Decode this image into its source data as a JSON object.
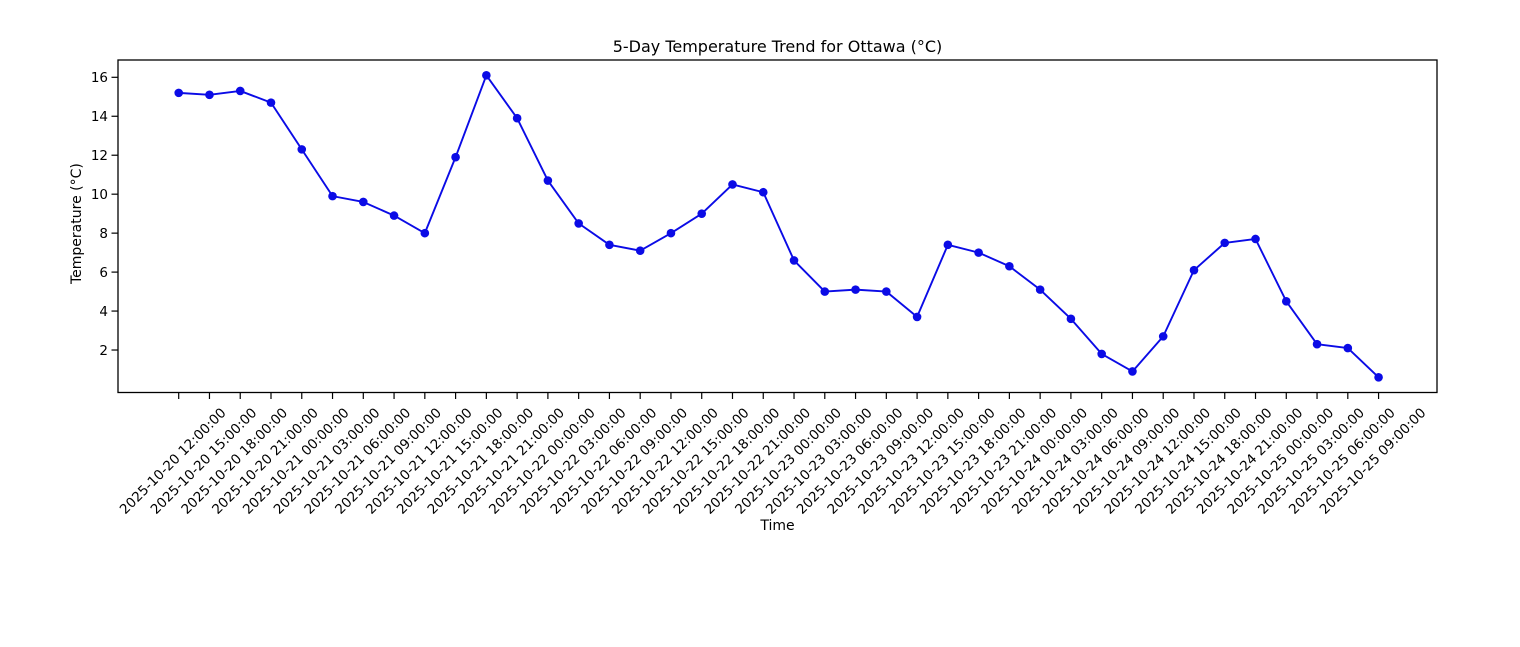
{
  "figure": {
    "title": "5-Day Temperature Trend for Ottawa (°C)",
    "xlabel": "Time",
    "ylabel": "Temperature (°C)"
  },
  "chart_data": {
    "type": "line",
    "title": "5-Day Temperature Trend for Ottawa (°C)",
    "xlabel": "Time",
    "ylabel": "Temperature (°C)",
    "line_color": "#0b0be6",
    "marker": "circle",
    "grid": false,
    "legend": null,
    "yticks": [
      2,
      4,
      6,
      8,
      10,
      12,
      14,
      16
    ],
    "ylim": [
      -0.2,
      16.9
    ],
    "x": [
      "2025-10-20 12:00:00",
      "2025-10-20 15:00:00",
      "2025-10-20 18:00:00",
      "2025-10-20 21:00:00",
      "2025-10-21 00:00:00",
      "2025-10-21 03:00:00",
      "2025-10-21 06:00:00",
      "2025-10-21 09:00:00",
      "2025-10-21 12:00:00",
      "2025-10-21 15:00:00",
      "2025-10-21 18:00:00",
      "2025-10-21 21:00:00",
      "2025-10-22 00:00:00",
      "2025-10-22 03:00:00",
      "2025-10-22 06:00:00",
      "2025-10-22 09:00:00",
      "2025-10-22 12:00:00",
      "2025-10-22 15:00:00",
      "2025-10-22 18:00:00",
      "2025-10-22 21:00:00",
      "2025-10-23 00:00:00",
      "2025-10-23 03:00:00",
      "2025-10-23 06:00:00",
      "2025-10-23 09:00:00",
      "2025-10-23 12:00:00",
      "2025-10-23 15:00:00",
      "2025-10-23 18:00:00",
      "2025-10-23 21:00:00",
      "2025-10-24 00:00:00",
      "2025-10-24 03:00:00",
      "2025-10-24 06:00:00",
      "2025-10-24 09:00:00",
      "2025-10-24 12:00:00",
      "2025-10-24 15:00:00",
      "2025-10-24 18:00:00",
      "2025-10-24 21:00:00",
      "2025-10-25 00:00:00",
      "2025-10-25 03:00:00",
      "2025-10-25 06:00:00",
      "2025-10-25 09:00:00"
    ],
    "values": [
      15.2,
      15.1,
      15.3,
      14.7,
      12.3,
      9.9,
      9.6,
      8.9,
      8.0,
      11.9,
      16.1,
      13.9,
      10.7,
      8.5,
      7.4,
      7.1,
      8.0,
      9.0,
      10.5,
      10.1,
      6.6,
      5.0,
      5.1,
      5.0,
      3.7,
      7.4,
      7.0,
      6.3,
      5.1,
      3.6,
      1.8,
      0.9,
      2.7,
      6.1,
      7.5,
      7.7,
      4.5,
      2.3,
      2.1,
      0.6
    ]
  }
}
